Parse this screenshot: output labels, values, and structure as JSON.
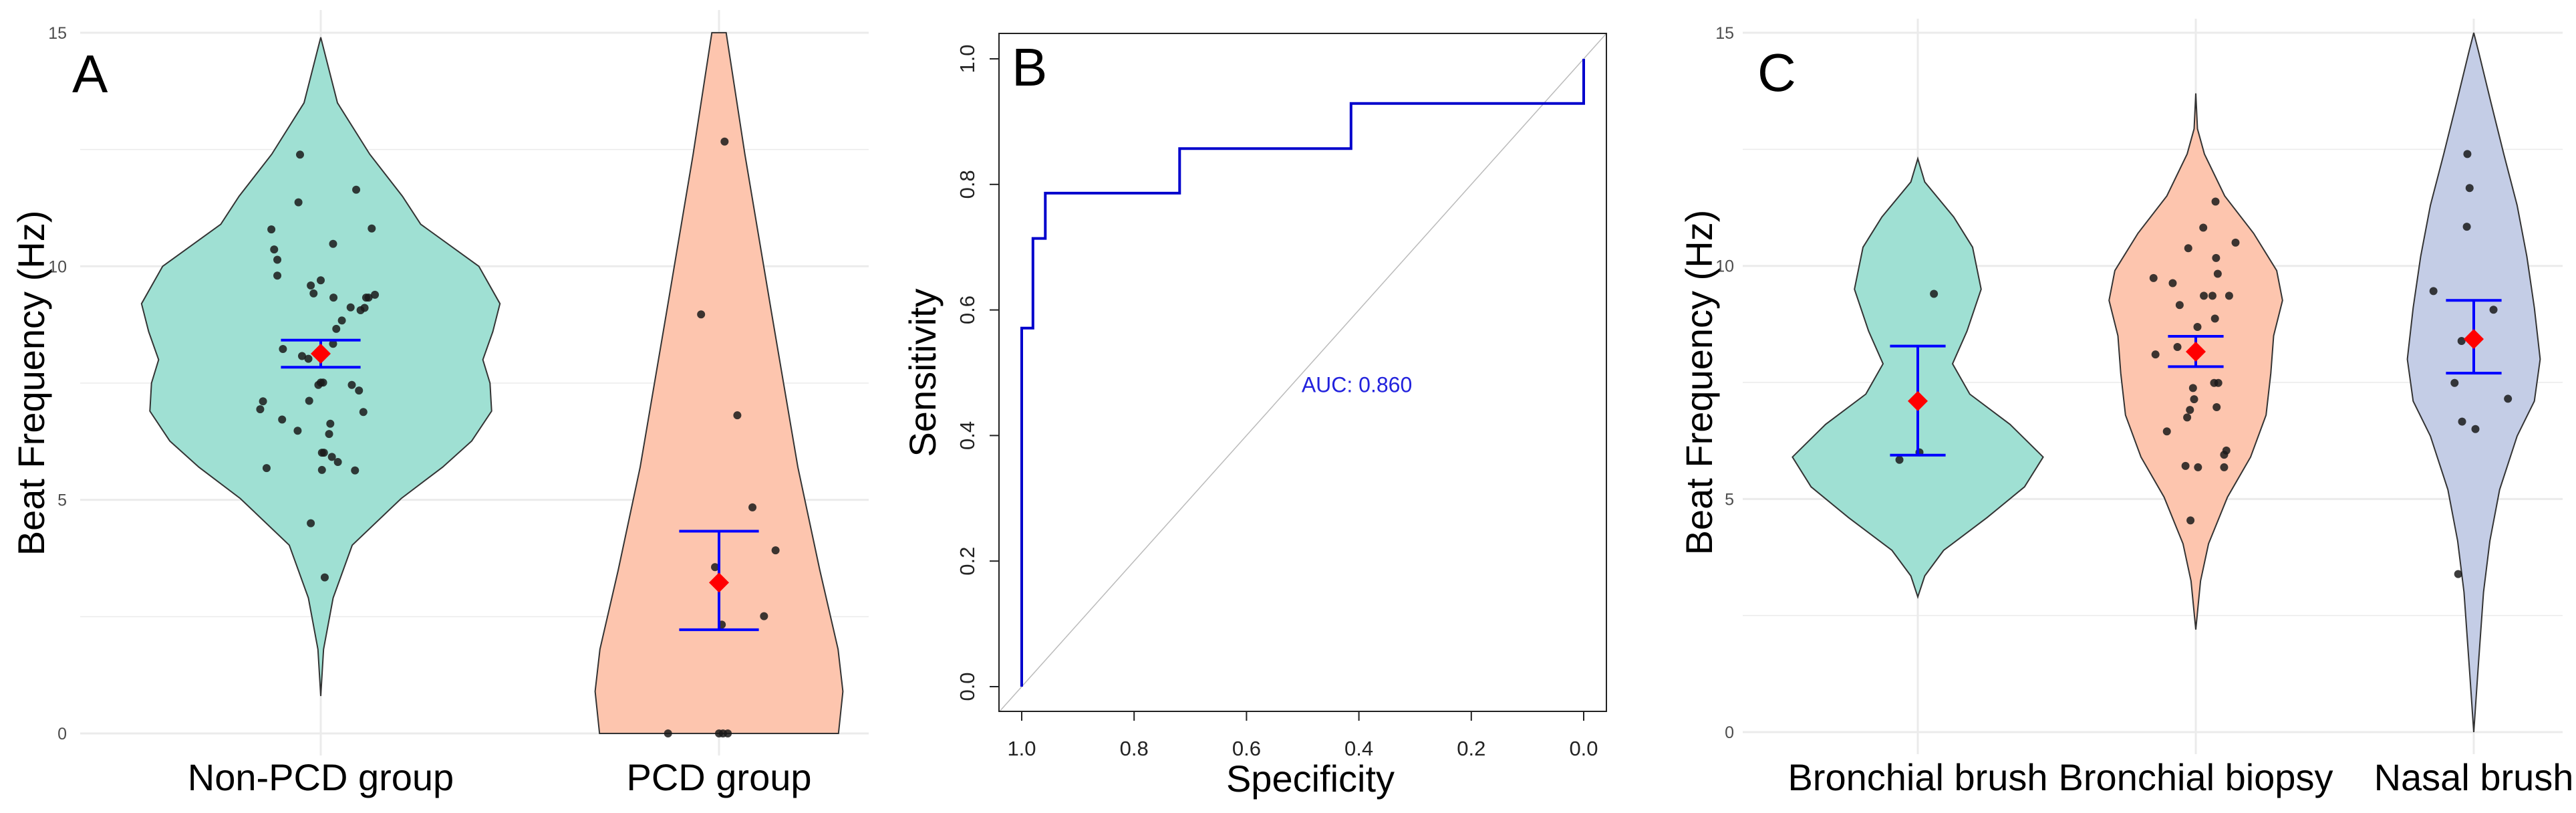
{
  "chart_data": [
    {
      "type": "violin",
      "panel_label": "A",
      "ylabel": "Beat Frequency (Hz)",
      "xlabel": "",
      "ylim": [
        0,
        15
      ],
      "yticks": [
        "0",
        "5",
        "10",
        "15"
      ],
      "categories": [
        "Non-PCD group",
        "PCD group"
      ],
      "colors": [
        "#9fe0d3",
        "#fdc5ae"
      ],
      "violins": [
        {
          "name": "Non-PCD group",
          "profile": [
            [
              14.9,
              0
            ],
            [
              13.5,
              0.042
            ],
            [
              12.4,
              0.123
            ],
            [
              11.5,
              0.205
            ],
            [
              10.9,
              0.251
            ],
            [
              10.0,
              0.397
            ],
            [
              9.2,
              0.45
            ],
            [
              8.6,
              0.432
            ],
            [
              8.0,
              0.407
            ],
            [
              7.5,
              0.425
            ],
            [
              6.9,
              0.429
            ],
            [
              6.26,
              0.379
            ],
            [
              5.7,
              0.306
            ],
            [
              5.03,
              0.202
            ],
            [
              4.03,
              0.079
            ],
            [
              2.9,
              0.031
            ],
            [
              1.8,
              0.007
            ],
            [
              0.8,
              0
            ]
          ],
          "points": [
            [
              -0.052,
              12.39
            ],
            [
              0.089,
              11.64
            ],
            [
              -0.056,
              11.37
            ],
            [
              -0.124,
              10.79
            ],
            [
              0.128,
              10.81
            ],
            [
              0.031,
              10.48
            ],
            [
              -0.117,
              10.36
            ],
            [
              -0.109,
              10.14
            ],
            [
              -0.109,
              9.8
            ],
            [
              0,
              9.7
            ],
            [
              -0.025,
              9.59
            ],
            [
              -0.018,
              9.42
            ],
            [
              0.032,
              9.33
            ],
            [
              0.136,
              9.39
            ],
            [
              0.12,
              9.33
            ],
            [
              0.114,
              9.33
            ],
            [
              0.075,
              9.12
            ],
            [
              0.11,
              9.11
            ],
            [
              0.1,
              9.06
            ],
            [
              0.053,
              8.84
            ],
            [
              0.039,
              8.66
            ],
            [
              0.031,
              8.34
            ],
            [
              -0.095,
              8.23
            ],
            [
              -0.047,
              8.08
            ],
            [
              -0.031,
              8.02
            ],
            [
              0,
              7.51
            ],
            [
              0.006,
              7.51
            ],
            [
              -0.006,
              7.46
            ],
            [
              0.078,
              7.46
            ],
            [
              0.096,
              7.34
            ],
            [
              -0.145,
              7.11
            ],
            [
              -0.029,
              7.12
            ],
            [
              -0.152,
              6.94
            ],
            [
              0.107,
              6.88
            ],
            [
              -0.097,
              6.72
            ],
            [
              0.024,
              6.63
            ],
            [
              -0.058,
              6.48
            ],
            [
              0.021,
              6.41
            ],
            [
              0.003,
              6.01
            ],
            [
              0.008,
              6.01
            ],
            [
              0.028,
              5.92
            ],
            [
              0.043,
              5.81
            ],
            [
              -0.136,
              5.68
            ],
            [
              0.003,
              5.64
            ],
            [
              0.086,
              5.63
            ],
            [
              -0.025,
              4.5
            ],
            [
              0.01,
              3.34
            ]
          ],
          "mean": 8.13,
          "ci": [
            7.84,
            8.42
          ]
        },
        {
          "name": "PCD group",
          "flat_bottom": true,
          "profile": [
            [
              15,
              0.018
            ],
            [
              12.4,
              0.065
            ],
            [
              9.0,
              0.132
            ],
            [
              5.7,
              0.198
            ],
            [
              3.5,
              0.253
            ],
            [
              1.8,
              0.299
            ],
            [
              0.9,
              0.311
            ],
            [
              0,
              0.3
            ]
          ],
          "points": [
            [
              0.014,
              12.67
            ],
            [
              -0.045,
              8.97
            ],
            [
              0.046,
              6.81
            ],
            [
              0.084,
              4.84
            ],
            [
              0.142,
              3.92
            ],
            [
              -0.01,
              3.56
            ],
            [
              0.113,
              2.51
            ],
            [
              0.007,
              2.33
            ],
            [
              -0.128,
              0
            ],
            [
              0,
              0
            ],
            [
              0.01,
              0
            ],
            [
              0.022,
              0
            ]
          ],
          "mean": 3.23,
          "ci": [
            2.22,
            4.33
          ]
        }
      ]
    },
    {
      "type": "line",
      "panel_label": "B",
      "xlabel": "Specificity",
      "ylabel": "Sensitivity",
      "xlim": [
        1.0,
        0.0
      ],
      "ylim": [
        0.0,
        1.0
      ],
      "xticks": [
        "1.0",
        "0.8",
        "0.6",
        "0.4",
        "0.2",
        "0.0"
      ],
      "yticks": [
        "0.0",
        "0.2",
        "0.4",
        "0.6",
        "0.8",
        "1.0"
      ],
      "annotation": "AUC: 0.860",
      "annotation_pos": [
        0.502,
        0.48
      ],
      "line_color": "#0000cc",
      "series": [
        {
          "name": "ROC",
          "points": [
            [
              1.0,
              0.0
            ],
            [
              1.0,
              0.571
            ],
            [
              0.98,
              0.571
            ],
            [
              0.98,
              0.714
            ],
            [
              0.958,
              0.714
            ],
            [
              0.958,
              0.786
            ],
            [
              0.719,
              0.786
            ],
            [
              0.719,
              0.857
            ],
            [
              0.414,
              0.857
            ],
            [
              0.414,
              0.929
            ],
            [
              0.0,
              0.929
            ],
            [
              0.0,
              1.0
            ]
          ]
        },
        {
          "name": "reference",
          "points": [
            [
              1.0,
              0.0
            ],
            [
              0.0,
              1.0
            ]
          ]
        }
      ]
    },
    {
      "type": "violin",
      "panel_label": "C",
      "ylabel": "Beat Frequency (Hz)",
      "xlabel": "",
      "ylim": [
        0,
        15
      ],
      "yticks": [
        "0",
        "5",
        "10",
        "15"
      ],
      "categories": [
        "Bronchial brush",
        "Bronchial biopsy",
        "Nasal brush"
      ],
      "colors": [
        "#9fe0d3",
        "#fdc5ae",
        "#c4cde6"
      ],
      "violins": [
        {
          "name": "Bronchial brush",
          "profile": [
            [
              12.3,
              0
            ],
            [
              11.8,
              0.025
            ],
            [
              11.05,
              0.129
            ],
            [
              10.4,
              0.197
            ],
            [
              9.5,
              0.228
            ],
            [
              8.6,
              0.177
            ],
            [
              7.9,
              0.125
            ],
            [
              7.25,
              0.187
            ],
            [
              6.6,
              0.332
            ],
            [
              5.9,
              0.451
            ],
            [
              5.26,
              0.384
            ],
            [
              4.6,
              0.249
            ],
            [
              3.9,
              0.093
            ],
            [
              3.35,
              0.025
            ],
            [
              2.9,
              0
            ]
          ],
          "points": [
            [
              0.058,
              9.4
            ],
            [
              0.006,
              6.0
            ],
            [
              -0.066,
              5.84
            ]
          ],
          "mean": 7.1,
          "ci": [
            5.94,
            8.28
          ]
        },
        {
          "name": "Bronchial biopsy",
          "profile": [
            [
              13.7,
              0
            ],
            [
              12.94,
              0.006
            ],
            [
              12.4,
              0.031
            ],
            [
              11.5,
              0.104
            ],
            [
              10.7,
              0.208
            ],
            [
              9.9,
              0.291
            ],
            [
              9.26,
              0.312
            ],
            [
              8.5,
              0.28
            ],
            [
              7.7,
              0.27
            ],
            [
              6.8,
              0.253
            ],
            [
              5.9,
              0.197
            ],
            [
              5.04,
              0.114
            ],
            [
              4.04,
              0.046
            ],
            [
              3.24,
              0.017
            ],
            [
              2.2,
              0
            ]
          ],
          "points": [
            [
              0.071,
              11.38
            ],
            [
              0.027,
              10.82
            ],
            [
              0.143,
              10.5
            ],
            [
              -0.027,
              10.38
            ],
            [
              0.073,
              10.17
            ],
            [
              0.079,
              9.83
            ],
            [
              -0.152,
              9.74
            ],
            [
              -0.083,
              9.63
            ],
            [
              0.029,
              9.36
            ],
            [
              0.06,
              9.36
            ],
            [
              0.12,
              9.36
            ],
            [
              -0.058,
              9.16
            ],
            [
              0.069,
              8.87
            ],
            [
              0.006,
              8.69
            ],
            [
              -0.066,
              8.26
            ],
            [
              -0.145,
              8.1
            ],
            [
              -0.01,
              7.38
            ],
            [
              0.066,
              7.49
            ],
            [
              0.081,
              7.49
            ],
            [
              -0.006,
              7.14
            ],
            [
              -0.021,
              6.91
            ],
            [
              0.075,
              6.97
            ],
            [
              -0.031,
              6.75
            ],
            [
              -0.104,
              6.45
            ],
            [
              0.11,
              6.04
            ],
            [
              0.102,
              5.95
            ],
            [
              -0.037,
              5.71
            ],
            [
              0.008,
              5.68
            ],
            [
              0.102,
              5.68
            ],
            [
              -0.019,
              4.54
            ]
          ],
          "mean": 8.16,
          "ci": [
            7.84,
            8.49
          ]
        },
        {
          "name": "Nasal brush",
          "profile": [
            [
              15,
              0
            ],
            [
              14.6,
              0.017
            ],
            [
              13.5,
              0.062
            ],
            [
              12.4,
              0.108
            ],
            [
              11.3,
              0.156
            ],
            [
              10.2,
              0.191
            ],
            [
              9.1,
              0.218
            ],
            [
              8.0,
              0.239
            ],
            [
              7.1,
              0.218
            ],
            [
              6.35,
              0.156
            ],
            [
              5.2,
              0.093
            ],
            [
              4.1,
              0.058
            ],
            [
              3.0,
              0.035
            ],
            [
              1.3,
              0.015
            ],
            [
              0.35,
              0.004
            ],
            [
              0,
              0
            ]
          ],
          "points": [
            [
              -0.023,
              12.4
            ],
            [
              -0.015,
              11.67
            ],
            [
              -0.025,
              10.84
            ],
            [
              -0.145,
              9.46
            ],
            [
              0.071,
              9.06
            ],
            [
              -0.044,
              8.39
            ],
            [
              -0.069,
              7.49
            ],
            [
              0.123,
              7.15
            ],
            [
              -0.042,
              6.66
            ],
            [
              0.006,
              6.5
            ],
            [
              -0.056,
              3.39
            ]
          ],
          "mean": 8.43,
          "ci": [
            7.7,
            9.26
          ]
        }
      ]
    }
  ],
  "style": {
    "point_color": "#1a1a1a",
    "mean_color": "#ff0000",
    "errorbar_color": "#0000ff",
    "outline_color": "#333333",
    "grid_color": "#ebebeb"
  }
}
